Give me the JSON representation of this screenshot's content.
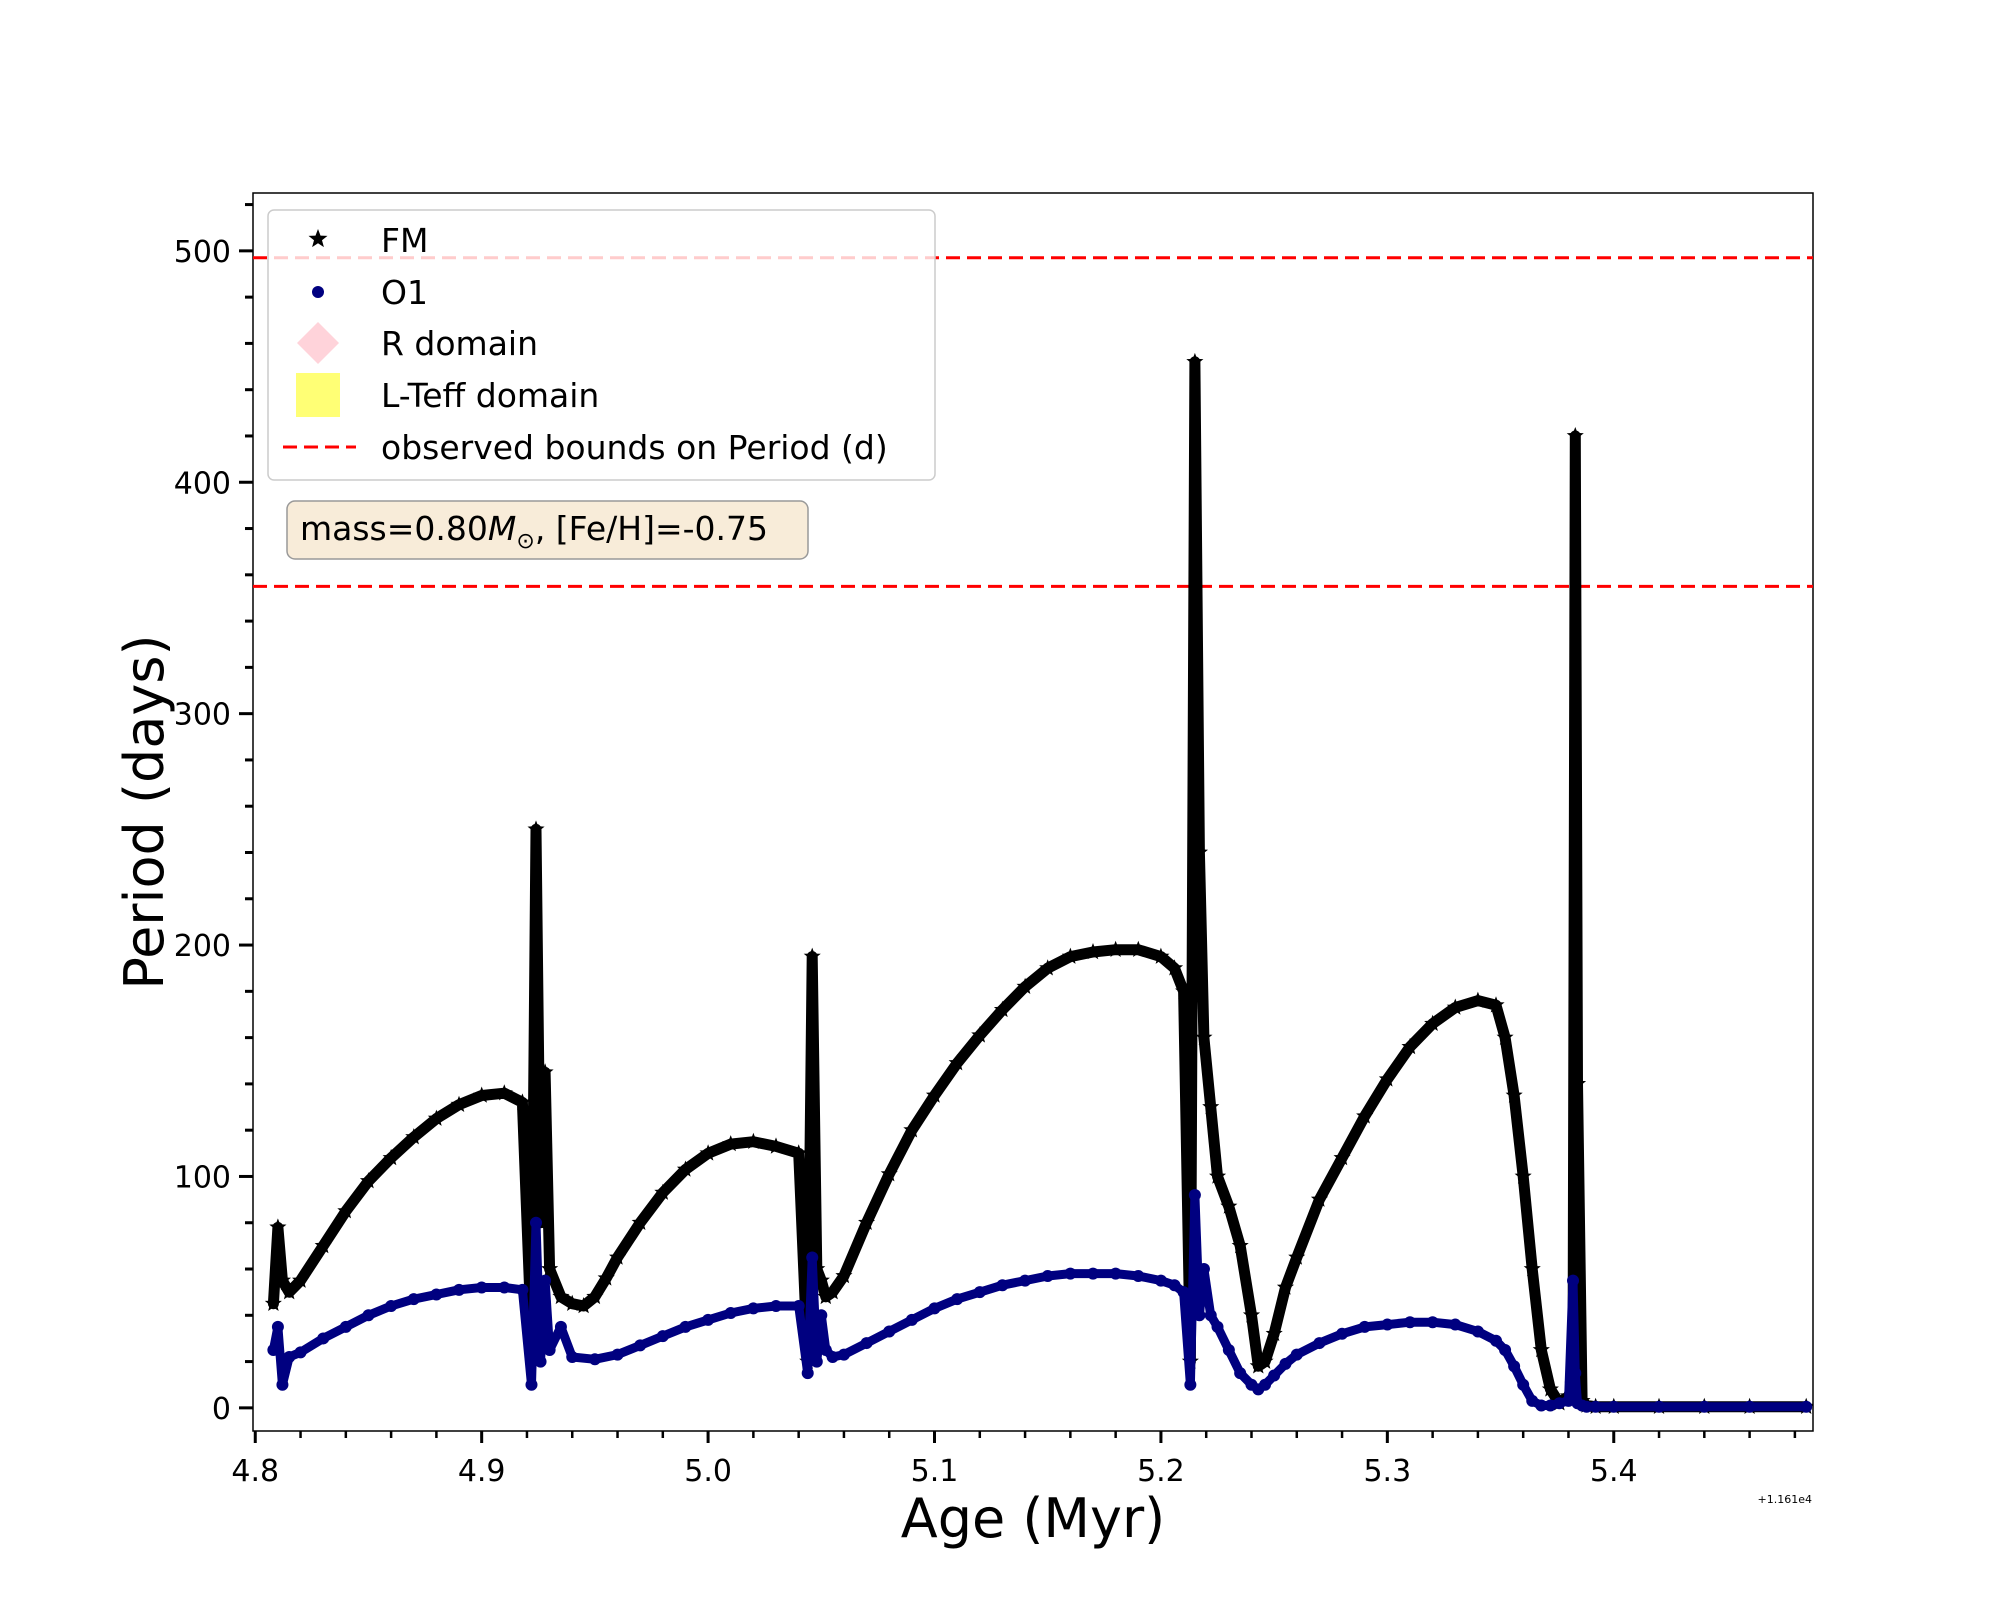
{
  "chart_data": {
    "type": "scatter",
    "xlabel": "Age (Myr)",
    "ylabel": "Period (days)",
    "x_offset_label": "+1.161e4",
    "xlim": [
      4.799,
      5.488
    ],
    "ylim": [
      -10,
      525
    ],
    "x_ticks": [
      4.8,
      4.9,
      5.0,
      5.1,
      5.2,
      5.3,
      5.4
    ],
    "x_tick_labels": [
      "4.8",
      "4.9",
      "5.0",
      "5.1",
      "5.2",
      "5.3",
      "5.4"
    ],
    "y_ticks": [
      0,
      100,
      200,
      300,
      400,
      500
    ],
    "y_tick_labels": [
      "0",
      "100",
      "200",
      "300",
      "400",
      "500"
    ],
    "grid": false,
    "legend_position": "upper-left",
    "annotation": {
      "prefix": "mass=0.80",
      "symbol": "M",
      "subscript": "⊙",
      "suffix": ", [Fe/H]=-0.75",
      "background": "#f8ecd9"
    },
    "hlines": [
      {
        "name": "observed bounds on Period (d)",
        "y": 497,
        "color": "#ff0000",
        "style": "dashed"
      },
      {
        "name": "observed bounds on Period (d)",
        "y": 355,
        "color": "#ff0000",
        "style": "dashed"
      }
    ],
    "legend": [
      {
        "label": "FM",
        "marker": "star",
        "color": "#000000"
      },
      {
        "label": "O1",
        "marker": "dot",
        "color": "#000080"
      },
      {
        "label": "R domain",
        "marker": "diamond",
        "color": "#ffc0cb"
      },
      {
        "label": "L-Teff domain",
        "marker": "square",
        "color": "#ffff66"
      },
      {
        "label": "observed bounds on Period (d)",
        "marker": "dashed-line",
        "color": "#ff0000"
      }
    ],
    "series": [
      {
        "name": "FM",
        "color": "#000000",
        "marker": "star",
        "x": [
          4.808,
          4.81,
          4.812,
          4.815,
          4.82,
          4.83,
          4.84,
          4.85,
          4.86,
          4.87,
          4.88,
          4.89,
          4.9,
          4.91,
          4.918,
          4.922,
          4.924,
          4.926,
          4.928,
          4.93,
          4.935,
          4.94,
          4.945,
          4.95,
          4.955,
          4.96,
          4.97,
          4.98,
          4.99,
          5.0,
          5.01,
          5.02,
          5.03,
          5.04,
          5.044,
          5.046,
          5.048,
          5.05,
          5.052,
          5.055,
          5.06,
          5.07,
          5.08,
          5.09,
          5.1,
          5.11,
          5.12,
          5.13,
          5.14,
          5.15,
          5.16,
          5.17,
          5.18,
          5.19,
          5.2,
          5.206,
          5.21,
          5.213,
          5.215,
          5.217,
          5.219,
          5.222,
          5.225,
          5.23,
          5.235,
          5.24,
          5.243,
          5.246,
          5.25,
          5.255,
          5.26,
          5.27,
          5.28,
          5.29,
          5.3,
          5.31,
          5.32,
          5.33,
          5.34,
          5.348,
          5.352,
          5.356,
          5.36,
          5.364,
          5.368,
          5.372,
          5.376,
          5.38,
          5.382,
          5.383,
          5.384,
          5.386,
          5.388,
          5.392,
          5.4,
          5.42,
          5.44,
          5.46,
          5.485
        ],
        "y": [
          45,
          78,
          55,
          50,
          55,
          70,
          85,
          98,
          108,
          117,
          125,
          131,
          135,
          136,
          132,
          30,
          250,
          80,
          145,
          60,
          48,
          45,
          44,
          48,
          56,
          65,
          80,
          93,
          103,
          110,
          114,
          115,
          113,
          110,
          20,
          195,
          60,
          55,
          48,
          50,
          57,
          80,
          101,
          120,
          135,
          149,
          161,
          172,
          182,
          190,
          195,
          197,
          198,
          198,
          195,
          190,
          180,
          20,
          452,
          240,
          160,
          130,
          100,
          87,
          70,
          40,
          18,
          20,
          32,
          52,
          65,
          90,
          108,
          126,
          142,
          156,
          166,
          173,
          176,
          174,
          160,
          135,
          100,
          60,
          25,
          8,
          2,
          5,
          10,
          420,
          140,
          3,
          1,
          0.5,
          0.5,
          0.5,
          0.5,
          0.5,
          0.5
        ]
      },
      {
        "name": "O1",
        "color": "#000080",
        "marker": "dot",
        "x": [
          4.808,
          4.81,
          4.812,
          4.815,
          4.82,
          4.83,
          4.84,
          4.85,
          4.86,
          4.87,
          4.88,
          4.89,
          4.9,
          4.91,
          4.918,
          4.922,
          4.924,
          4.926,
          4.928,
          4.93,
          4.935,
          4.94,
          4.95,
          4.96,
          4.97,
          4.98,
          4.99,
          5.0,
          5.01,
          5.02,
          5.03,
          5.04,
          5.044,
          5.046,
          5.048,
          5.05,
          5.052,
          5.055,
          5.06,
          5.07,
          5.08,
          5.09,
          5.1,
          5.11,
          5.12,
          5.13,
          5.14,
          5.15,
          5.16,
          5.17,
          5.18,
          5.19,
          5.2,
          5.206,
          5.21,
          5.213,
          5.215,
          5.217,
          5.219,
          5.222,
          5.225,
          5.23,
          5.235,
          5.24,
          5.243,
          5.246,
          5.25,
          5.255,
          5.26,
          5.27,
          5.28,
          5.29,
          5.3,
          5.31,
          5.32,
          5.33,
          5.34,
          5.348,
          5.352,
          5.356,
          5.36,
          5.364,
          5.368,
          5.372,
          5.376,
          5.38,
          5.382,
          5.383,
          5.384,
          5.386,
          5.388,
          5.392,
          5.4,
          5.42,
          5.44,
          5.46,
          5.485
        ],
        "y": [
          25,
          35,
          10,
          22,
          24,
          30,
          35,
          40,
          44,
          47,
          49,
          51,
          52,
          52,
          51,
          10,
          80,
          20,
          55,
          25,
          35,
          22,
          21,
          23,
          27,
          31,
          35,
          38,
          41,
          43,
          44,
          44,
          15,
          65,
          20,
          40,
          25,
          22,
          23,
          28,
          33,
          38,
          43,
          47,
          50,
          53,
          55,
          57,
          58,
          58,
          58,
          57,
          55,
          53,
          50,
          10,
          92,
          40,
          60,
          40,
          35,
          25,
          15,
          10,
          8,
          10,
          14,
          19,
          23,
          28,
          32,
          35,
          36,
          37,
          37,
          36,
          33,
          29,
          25,
          18,
          10,
          3,
          1,
          1,
          2,
          3,
          55,
          15,
          2,
          1,
          0.5,
          0.5,
          0.5,
          0.5,
          0.5,
          0.5,
          0.5
        ]
      }
    ]
  }
}
